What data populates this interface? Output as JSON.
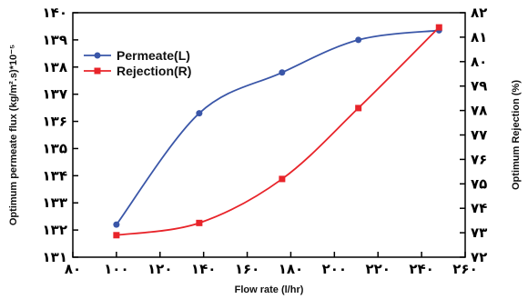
{
  "chart_data": {
    "type": "line",
    "xlabel": "Flow rate (l/hr)",
    "ylabel_left": "Optimum permeate flux (kg/m².s)*10⁻⁵",
    "ylabel_right": "Optimum Rejection (%)",
    "xlim": [
      80,
      260
    ],
    "ylim_left": [
      131,
      140
    ],
    "ylim_right": [
      72,
      82
    ],
    "x_ticks": [
      80,
      100,
      120,
      140,
      160,
      180,
      200,
      220,
      240,
      260
    ],
    "x_tick_labels": [
      "۸۰",
      "۱۰۰",
      "۱۲۰",
      "۱۴۰",
      "۱۶۰",
      "۱۸۰",
      "۲۰۰",
      "۲۲۰",
      "۲۴۰",
      "۲۶۰"
    ],
    "y_left_ticks": [
      131,
      132,
      133,
      134,
      135,
      136,
      137,
      138,
      139,
      140
    ],
    "y_left_tick_labels": [
      "۱۳۱",
      "۱۳۲",
      "۱۳۳",
      "۱۳۴",
      "۱۳۵",
      "۱۳۶",
      "۱۳۷",
      "۱۳۸",
      "۱۳۹",
      "۱۴۰"
    ],
    "y_right_ticks": [
      72,
      73,
      74,
      75,
      76,
      77,
      78,
      79,
      80,
      81,
      82
    ],
    "y_right_tick_labels": [
      "۷۲",
      "۷۳",
      "۷۴",
      "۷۵",
      "۷۶",
      "۷۷",
      "۷۸",
      "۷۹",
      "۸۰",
      "۸۱",
      "۸۲"
    ],
    "legend_position": "top-left",
    "series": [
      {
        "name": "Permeate(L)",
        "axis": "left",
        "color": "#3a56a8",
        "marker": "circle",
        "x": [
          100,
          138,
          176,
          211,
          248
        ],
        "values": [
          132.2,
          136.3,
          137.8,
          139.0,
          139.35
        ]
      },
      {
        "name": "Rejection(R)",
        "axis": "right",
        "color": "#e8242a",
        "marker": "square",
        "x": [
          100,
          138,
          176,
          211,
          248
        ],
        "values": [
          72.9,
          73.4,
          75.2,
          78.1,
          81.4
        ]
      }
    ]
  }
}
